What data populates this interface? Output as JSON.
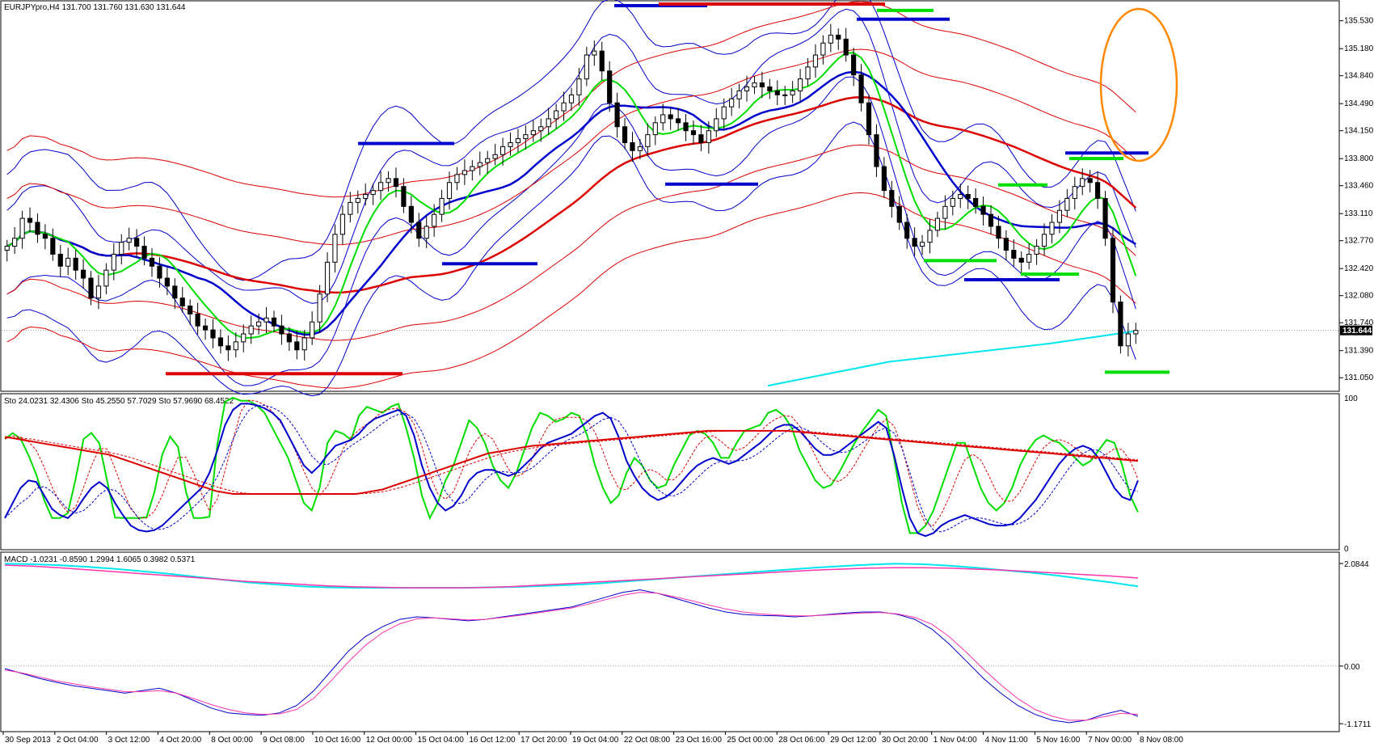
{
  "header": {
    "price_info": "EURJPYpro,H4  131.700 131.760 131.630 131.644",
    "sto_info": "Sto 24.0231 32.4306  Sto 45.2550 57.7029  Sto 57.9690 68.4522",
    "macd_info": "MACD -1.0231 -0.8590 1.2994 1.6065 0.3982 0.5371"
  },
  "colors": {
    "background": "#ffffff",
    "frame": "#000000",
    "candle_up": "#ffffff",
    "candle_down": "#000000",
    "blue": "#0000cc",
    "red": "#dd0000",
    "green": "#00dd00",
    "cyan": "#00e5ee",
    "magenta": "#ff33aa",
    "orange": "#ff8800"
  },
  "chart_data": [
    {
      "type": "candlestick",
      "symbol": "EURJPYpro",
      "timeframe": "H4",
      "current_price": 131.644,
      "current_price_label": "131.644",
      "ylim": [
        130.9,
        135.75
      ],
      "y_ticks": [
        {
          "value": 135.53,
          "label": "135.530"
        },
        {
          "value": 135.18,
          "label": "135.180"
        },
        {
          "value": 134.84,
          "label": "134.840"
        },
        {
          "value": 134.49,
          "label": "134.490"
        },
        {
          "value": 134.15,
          "label": "134.150"
        },
        {
          "value": 133.8,
          "label": "133.800"
        },
        {
          "value": 133.46,
          "label": "133.460"
        },
        {
          "value": 133.11,
          "label": "133.110"
        },
        {
          "value": 132.77,
          "label": "132.770"
        },
        {
          "value": 132.42,
          "label": "132.420"
        },
        {
          "value": 132.08,
          "label": "132.080"
        },
        {
          "value": 131.74,
          "label": "131.740"
        },
        {
          "value": 131.39,
          "label": "131.390"
        },
        {
          "value": 131.05,
          "label": "131.050"
        }
      ],
      "x_labels": [
        "30 Sep 2013",
        "2 Oct 04:00",
        "3 Oct 12:00",
        "4 Oct 20:00",
        "8 Oct 00:00",
        "9 Oct 08:00",
        "10 Oct 16:00",
        "12 Oct 00:00",
        "15 Oct 04:00",
        "16 Oct 12:00",
        "17 Oct 20:00",
        "19 Oct 04:00",
        "22 Oct 08:00",
        "23 Oct 16:00",
        "25 Oct 00:00",
        "28 Oct 06:00",
        "29 Oct 12:00",
        "30 Oct 20:00",
        "1 Nov 04:00",
        "4 Nov 11:00",
        "5 Nov 16:00",
        "7 Nov 00:00",
        "8 Nov 08:00"
      ],
      "close": [
        132.7,
        132.8,
        133.05,
        133.0,
        132.85,
        132.8,
        132.6,
        132.45,
        132.55,
        132.4,
        132.3,
        132.05,
        132.2,
        132.4,
        132.6,
        132.75,
        132.8,
        132.7,
        132.55,
        132.45,
        132.3,
        132.2,
        132.05,
        131.95,
        131.85,
        131.7,
        131.65,
        131.55,
        131.45,
        131.4,
        131.5,
        131.6,
        131.7,
        131.75,
        131.8,
        131.7,
        131.6,
        131.5,
        131.4,
        131.55,
        131.75,
        132.1,
        132.5,
        132.85,
        133.1,
        133.25,
        133.3,
        133.35,
        133.4,
        133.5,
        133.55,
        133.45,
        133.2,
        133.0,
        132.8,
        132.95,
        133.1,
        133.3,
        133.5,
        133.6,
        133.65,
        133.7,
        133.75,
        133.8,
        133.85,
        133.95,
        134.0,
        134.05,
        134.1,
        134.15,
        134.2,
        134.3,
        134.4,
        134.5,
        134.6,
        134.8,
        135.1,
        135.15,
        134.9,
        134.5,
        134.2,
        134.0,
        133.9,
        133.95,
        134.1,
        134.25,
        134.35,
        134.3,
        134.25,
        134.15,
        134.1,
        134.0,
        134.15,
        134.3,
        134.45,
        134.55,
        134.65,
        134.7,
        134.75,
        134.7,
        134.65,
        134.6,
        134.6,
        134.65,
        134.8,
        134.95,
        135.1,
        135.25,
        135.35,
        135.3,
        135.1,
        134.85,
        134.5,
        134.1,
        133.7,
        133.4,
        133.2,
        133.0,
        132.8,
        132.7,
        132.75,
        132.9,
        133.05,
        133.2,
        133.3,
        133.35,
        133.3,
        133.2,
        133.1,
        132.95,
        132.8,
        132.65,
        132.55,
        132.5,
        132.6,
        132.7,
        132.85,
        133.0,
        133.15,
        133.3,
        133.45,
        133.55,
        133.5,
        133.3,
        132.8,
        132.0,
        131.45,
        131.6,
        131.644
      ]
    },
    {
      "type": "line",
      "indicator": "Stochastic",
      "ylim": [
        0,
        100
      ],
      "y_ticks": [
        {
          "value": 100,
          "label": "100"
        },
        {
          "value": 0,
          "label": "0"
        }
      ],
      "series": [
        {
          "name": "Sto 24.0231",
          "values": [
            72.6,
            76.5,
            72.7,
            61.9,
            48.9,
            31.9,
            20.0,
            20.0,
            23.2,
            46.1,
            72.6,
            76.6,
            69.8,
            44.7,
            20.3,
            20.0,
            20.0,
            20.0,
            20.5,
            37.1,
            62.1,
            74.2,
            67.4,
            38.0,
            20.0,
            20.0,
            20.8,
            69.0,
            97.4,
            100.0,
            98.0,
            98.0,
            95.0,
            90.0,
            80.0,
            70.0,
            60.0,
            45.0,
            30.0,
            25.0,
            40.0,
            70.0,
            78.0,
            76.0,
            72.0,
            88.0,
            94.0,
            92.0,
            90.0,
            94.0,
            96.0,
            80.0,
            60.0,
            35.0,
            20.0,
            30.0,
            45.0,
            55.0,
            70.0,
            85.0,
            80.0,
            70.0,
            55.0,
            45.0,
            40.0,
            50.0,
            65.0,
            80.0,
            90.0,
            88.0,
            84.0,
            86.0,
            90.0,
            88.0,
            75.0,
            55.0,
            40.0,
            30.0,
            35.0,
            50.0,
            60.0,
            55.0,
            45.0,
            40.0,
            42.0,
            55.0,
            65.0,
            75.0,
            78.0,
            76.0,
            70.0,
            60.0,
            60.0,
            70.0,
            78.0,
            80.0,
            82.0,
            90.0,
            92.0,
            88.0,
            80.0,
            65.0,
            55.0,
            45.0,
            40.0,
            42.0,
            50.0,
            60.0,
            70.0,
            78.0,
            85.0,
            92.0,
            88.0,
            60.0,
            30.0,
            10.0,
            10.0,
            15.0,
            25.0,
            40.0,
            55.0,
            70.0,
            70.0,
            55.0,
            40.0,
            30.0,
            25.0,
            30.0,
            40.0,
            55.0,
            65.0,
            72.0,
            75.0,
            72.0,
            70.0,
            65.0,
            60.0,
            55.0,
            58.0,
            65.0,
            72.0,
            70.0,
            55.0,
            35.0,
            24.0
          ]
        },
        {
          "name": "Sto 45.2550",
          "values": [
            20.0,
            30.0,
            40.0,
            45.0,
            44.0,
            35.0,
            26.0,
            22.0,
            20.0,
            25.0,
            33.0,
            40.0,
            44.0,
            40.0,
            30.0,
            22.0,
            15.0,
            12.0,
            11.0,
            12.0,
            15.0,
            20.0,
            25.0,
            30.0,
            35.0,
            40.0,
            50.0,
            65.0,
            82.0,
            92.0,
            96.0,
            96.0,
            95.0,
            93.0,
            90.0,
            85.0,
            75.0,
            65.0,
            55.0,
            50.0,
            55.0,
            62.0,
            68.0,
            70.0,
            72.0,
            76.0,
            82.0,
            86.0,
            88.0,
            90.0,
            92.0,
            88.0,
            75.0,
            55.0,
            40.0,
            30.0,
            25.0,
            28.0,
            35.0,
            45.0,
            50.0,
            52.0,
            52.0,
            50.0,
            48.0,
            50.0,
            55.0,
            60.0,
            66.0,
            70.0,
            72.0,
            74.0,
            76.0,
            80.0,
            84.0,
            88.0,
            90.0,
            86.0,
            74.0,
            58.0,
            48.0,
            40.0,
            35.0,
            32.0,
            34.0,
            38.0,
            44.0,
            50.0,
            55.0,
            58.0,
            60.0,
            58.0,
            56.0,
            58.0,
            62.0,
            66.0,
            70.0,
            75.0,
            80.0,
            82.0,
            82.0,
            78.0,
            72.0,
            66.0,
            62.0,
            62.0,
            64.0,
            68.0,
            72.0,
            76.0,
            80.0,
            84.0,
            80.0,
            62.0,
            40.0,
            20.0,
            10.0,
            8.0,
            10.0,
            15.0,
            18.0,
            20.0,
            22.0,
            20.0,
            18.0,
            16.0,
            15.0,
            15.0,
            16.0,
            20.0,
            26.0,
            32.0,
            40.0,
            48.0,
            56.0,
            62.0,
            66.0,
            68.0,
            66.0,
            60.0,
            50.0,
            40.0,
            34.0,
            32.0,
            45.0
          ]
        },
        {
          "name": "Sto 57.9690",
          "values": [
            74.0,
            73.0,
            72.0,
            71.0,
            70.0,
            69.0,
            68.0,
            67.0,
            66.0,
            65.0,
            64.0,
            63.0,
            62.0,
            60.0,
            58.0,
            56.0,
            54.0,
            52.0,
            50.0,
            48.0,
            46.0,
            44.0,
            42.0,
            40.0,
            38.0,
            37.0,
            36.0,
            36.0,
            36.0,
            36.0,
            36.0,
            36.0,
            36.0,
            36.0,
            36.0,
            36.0,
            36.0,
            36.0,
            36.0,
            36.0,
            36.0,
            37.0,
            38.0,
            39.0,
            41.0,
            43.0,
            45.0,
            47.0,
            49.0,
            51.0,
            53.0,
            55.0,
            57.0,
            59.0,
            61.0,
            63.0,
            64.0,
            65.0,
            66.0,
            67.0,
            68.0,
            68.5,
            69.0,
            69.5,
            70.0,
            70.5,
            71.0,
            71.5,
            72.0,
            72.5,
            73.0,
            73.5,
            74.0,
            74.5,
            75.0,
            75.5,
            76.0,
            76.5,
            77.0,
            77.5,
            78.0,
            78.0,
            78.0,
            78.0,
            78.0,
            78.0,
            78.0,
            78.0,
            78.0,
            78.0,
            77.5,
            77.0,
            76.5,
            76.0,
            75.5,
            75.0,
            74.5,
            74.0,
            73.5,
            73.0,
            72.5,
            72.0,
            71.5,
            71.0,
            70.5,
            70.0,
            69.5,
            69.0,
            68.5,
            68.0,
            67.5,
            67.0,
            66.5,
            66.0,
            65.5,
            65.0,
            64.5,
            64.0,
            63.5,
            63.0,
            62.5,
            62.0,
            61.5,
            61.0,
            60.5,
            60.0,
            59.5,
            59.0,
            58.5,
            58.0
          ]
        }
      ]
    },
    {
      "type": "line",
      "indicator": "MACD",
      "ylim": [
        -1.25,
        2.2
      ],
      "y_ticks": [
        {
          "value": 2.0844,
          "label": "2.0844"
        },
        {
          "value": 0.0,
          "label": "0.00"
        },
        {
          "value": -1.1711,
          "label": "-1.1711"
        }
      ],
      "series": [
        {
          "name": "cyan",
          "values": [
            2.08,
            2.07,
            2.05,
            2.02,
            1.98,
            1.93,
            1.88,
            1.82,
            1.76,
            1.7,
            1.66,
            1.62,
            1.6,
            1.59,
            1.59,
            1.59,
            1.59,
            1.59,
            1.6,
            1.61,
            1.63,
            1.65,
            1.68,
            1.72,
            1.76,
            1.8,
            1.84,
            1.88,
            1.92,
            1.96,
            2.0,
            2.03,
            2.06,
            2.08,
            2.07,
            2.04,
            2.0,
            1.95,
            1.9,
            1.84,
            1.77,
            1.7,
            1.62
          ]
        },
        {
          "name": "magenta",
          "values": [
            2.05,
            2.03,
            2.0,
            1.96,
            1.92,
            1.88,
            1.84,
            1.8,
            1.76,
            1.72,
            1.69,
            1.66,
            1.63,
            1.61,
            1.6,
            1.59,
            1.59,
            1.59,
            1.6,
            1.62,
            1.65,
            1.68,
            1.71,
            1.74,
            1.77,
            1.8,
            1.83,
            1.86,
            1.89,
            1.92,
            1.95,
            1.97,
            1.99,
            2.0,
            2.0,
            1.99,
            1.97,
            1.95,
            1.92,
            1.89,
            1.86,
            1.83,
            1.79
          ]
        },
        {
          "name": "blue",
          "values": [
            -0.05,
            -0.15,
            -0.25,
            -0.33,
            -0.4,
            -0.45,
            -0.5,
            -0.55,
            -0.5,
            -0.45,
            -0.55,
            -0.7,
            -0.85,
            -0.95,
            -0.98,
            -1.0,
            -0.95,
            -0.8,
            -0.5,
            -0.1,
            0.3,
            0.6,
            0.8,
            0.95,
            1.0,
            0.98,
            0.95,
            0.92,
            0.95,
            1.0,
            1.05,
            1.1,
            1.15,
            1.2,
            1.3,
            1.4,
            1.5,
            1.55,
            1.48,
            1.38,
            1.28,
            1.18,
            1.1,
            1.05,
            1.03,
            1.02,
            1.0,
            1.02,
            1.05,
            1.08,
            1.1,
            1.1,
            1.05,
            0.95,
            0.75,
            0.45,
            0.1,
            -0.25,
            -0.55,
            -0.8,
            -0.98,
            -1.1,
            -1.15,
            -1.1,
            -0.98,
            -0.9,
            -1.02
          ]
        },
        {
          "name": "pink",
          "values": [
            -0.08,
            -0.14,
            -0.22,
            -0.3,
            -0.36,
            -0.42,
            -0.47,
            -0.52,
            -0.52,
            -0.5,
            -0.55,
            -0.66,
            -0.78,
            -0.88,
            -0.95,
            -0.98,
            -0.97,
            -0.88,
            -0.65,
            -0.3,
            0.08,
            0.42,
            0.68,
            0.86,
            0.96,
            0.98,
            0.96,
            0.94,
            0.95,
            0.99,
            1.03,
            1.08,
            1.13,
            1.18,
            1.26,
            1.35,
            1.44,
            1.5,
            1.48,
            1.41,
            1.33,
            1.24,
            1.16,
            1.1,
            1.06,
            1.04,
            1.02,
            1.02,
            1.04,
            1.06,
            1.08,
            1.09,
            1.06,
            0.99,
            0.85,
            0.6,
            0.28,
            -0.06,
            -0.38,
            -0.66,
            -0.88,
            -1.02,
            -1.1,
            -1.1,
            -1.03,
            -0.96,
            -0.98
          ]
        }
      ]
    }
  ]
}
